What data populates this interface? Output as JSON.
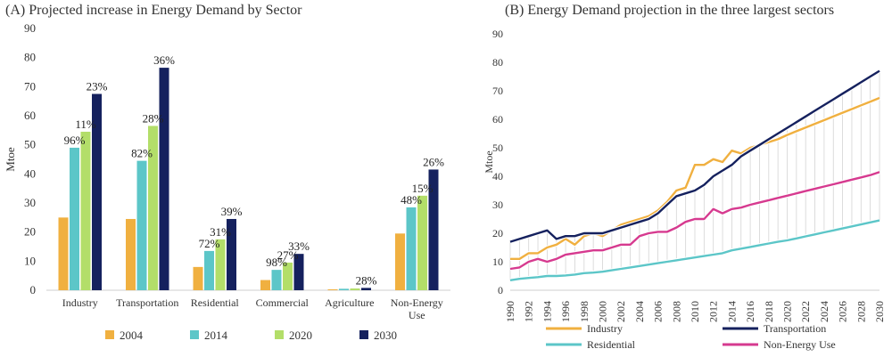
{
  "chart_data": [
    {
      "type": "bar",
      "title": "(A) Projected increase in Energy Demand by Sector",
      "ylabel": "Mtoe",
      "ylim": [
        0,
        90
      ],
      "yticks": [
        0,
        10,
        20,
        30,
        40,
        50,
        60,
        70,
        80,
        90
      ],
      "categories": [
        "Industry",
        "Transportation",
        "Residential",
        "Commercial",
        "Agriculture",
        "Non-Energy Use"
      ],
      "category_lines": [
        [
          "Industry"
        ],
        [
          "Transportation"
        ],
        [
          "Residential"
        ],
        [
          "Commercial"
        ],
        [
          "Agriculture"
        ],
        [
          "Non-Energy",
          "Use"
        ]
      ],
      "series": [
        {
          "name": "2004",
          "color": "#f0b040",
          "values": [
            25,
            24.5,
            8,
            3.5,
            0.3,
            19.5
          ]
        },
        {
          "name": "2014",
          "color": "#5cc6c8",
          "values": [
            49,
            44.5,
            13.5,
            7,
            0.5,
            28.5
          ]
        },
        {
          "name": "2020",
          "color": "#b3de69",
          "values": [
            54.5,
            56.5,
            17.5,
            9.5,
            0.6,
            32.5
          ]
        },
        {
          "name": "2030",
          "color": "#15215e",
          "values": [
            67.5,
            76.5,
            24.5,
            12.5,
            0.8,
            41.5
          ]
        }
      ],
      "annotations": [
        {
          "category": 0,
          "series": 1,
          "text": "96%"
        },
        {
          "category": 0,
          "series": 2,
          "text": "11%"
        },
        {
          "category": 0,
          "series": 3,
          "text": "23%"
        },
        {
          "category": 1,
          "series": 1,
          "text": "82%"
        },
        {
          "category": 1,
          "series": 2,
          "text": "28%"
        },
        {
          "category": 1,
          "series": 3,
          "text": "36%"
        },
        {
          "category": 2,
          "series": 1,
          "text": "72%"
        },
        {
          "category": 2,
          "series": 2,
          "text": "31%"
        },
        {
          "category": 2,
          "series": 3,
          "text": "39%"
        },
        {
          "category": 3,
          "series": 1,
          "text": "98%"
        },
        {
          "category": 3,
          "series": 2,
          "text": "27%"
        },
        {
          "category": 3,
          "series": 3,
          "text": "33%"
        },
        {
          "category": 4,
          "series": 3,
          "text": "28%"
        },
        {
          "category": 5,
          "series": 1,
          "text": "48%"
        },
        {
          "category": 5,
          "series": 2,
          "text": "15%"
        },
        {
          "category": 5,
          "series": 3,
          "text": "26%"
        }
      ],
      "legend_position": "bottom"
    },
    {
      "type": "line",
      "title": "(B) Energy Demand projection in the three  largest sectors",
      "ylabel": "Mtoe",
      "ylim": [
        0,
        90
      ],
      "yticks": [
        0,
        10,
        20,
        30,
        40,
        50,
        60,
        70,
        80,
        90
      ],
      "x": [
        1990,
        1991,
        1992,
        1993,
        1994,
        1995,
        1996,
        1997,
        1998,
        1999,
        2000,
        2001,
        2002,
        2003,
        2004,
        2005,
        2006,
        2007,
        2008,
        2009,
        2010,
        2011,
        2012,
        2013,
        2014,
        2015,
        2016,
        2017,
        2018,
        2019,
        2020,
        2021,
        2022,
        2023,
        2024,
        2025,
        2026,
        2027,
        2028,
        2029,
        2030
      ],
      "xticks": [
        1990,
        1992,
        1994,
        1996,
        1998,
        2000,
        2002,
        2004,
        2006,
        2008,
        2010,
        2012,
        2014,
        2016,
        2018,
        2020,
        2022,
        2024,
        2026,
        2028,
        2030
      ],
      "series": [
        {
          "name": "Industry",
          "color": "#f0b040",
          "values": [
            11,
            11,
            13,
            13,
            15,
            16,
            18,
            16,
            19,
            20,
            19,
            21,
            23,
            24,
            25,
            26,
            28,
            31,
            35,
            36,
            44,
            44,
            46,
            45,
            49,
            48,
            50,
            51,
            52,
            53,
            54.5,
            55.8,
            57.1,
            58.4,
            59.7,
            61,
            62.3,
            63.6,
            64.9,
            66.2,
            67.5
          ]
        },
        {
          "name": "Transportation",
          "color": "#15215e",
          "values": [
            17,
            18,
            19,
            20,
            21,
            18,
            19,
            19,
            20,
            20,
            20,
            21,
            22,
            23,
            24,
            25,
            27,
            30,
            33,
            34,
            35,
            37,
            40,
            42,
            44,
            47,
            49,
            51,
            53,
            55,
            57,
            59,
            61,
            63,
            65,
            67,
            69,
            71,
            73,
            75,
            77
          ]
        },
        {
          "name": "Residential",
          "color": "#5cc6c8",
          "values": [
            3.5,
            4,
            4.3,
            4.6,
            5,
            5,
            5.2,
            5.5,
            6,
            6.2,
            6.5,
            7,
            7.5,
            8,
            8.5,
            9,
            9.5,
            10,
            10.5,
            11,
            11.5,
            12,
            12.5,
            13,
            14,
            14.6,
            15.2,
            15.8,
            16.4,
            17,
            17.5,
            18.2,
            18.9,
            19.6,
            20.3,
            21,
            21.7,
            22.4,
            23.1,
            23.8,
            24.5
          ]
        },
        {
          "name": "Non-Energy Use",
          "color": "#d63a8f",
          "values": [
            7.5,
            8,
            10,
            11,
            10,
            11,
            12.5,
            13,
            13.5,
            14,
            14,
            15,
            16,
            16,
            19,
            20,
            20.5,
            20.5,
            22,
            24,
            25,
            25,
            28.5,
            27,
            28.5,
            29,
            30,
            30.8,
            31.6,
            32.4,
            33.2,
            34,
            34.8,
            35.6,
            36.4,
            37.2,
            38,
            38.8,
            39.6,
            40.4,
            41.5
          ]
        }
      ],
      "legend_position": "bottom",
      "grid": "vertical"
    }
  ]
}
